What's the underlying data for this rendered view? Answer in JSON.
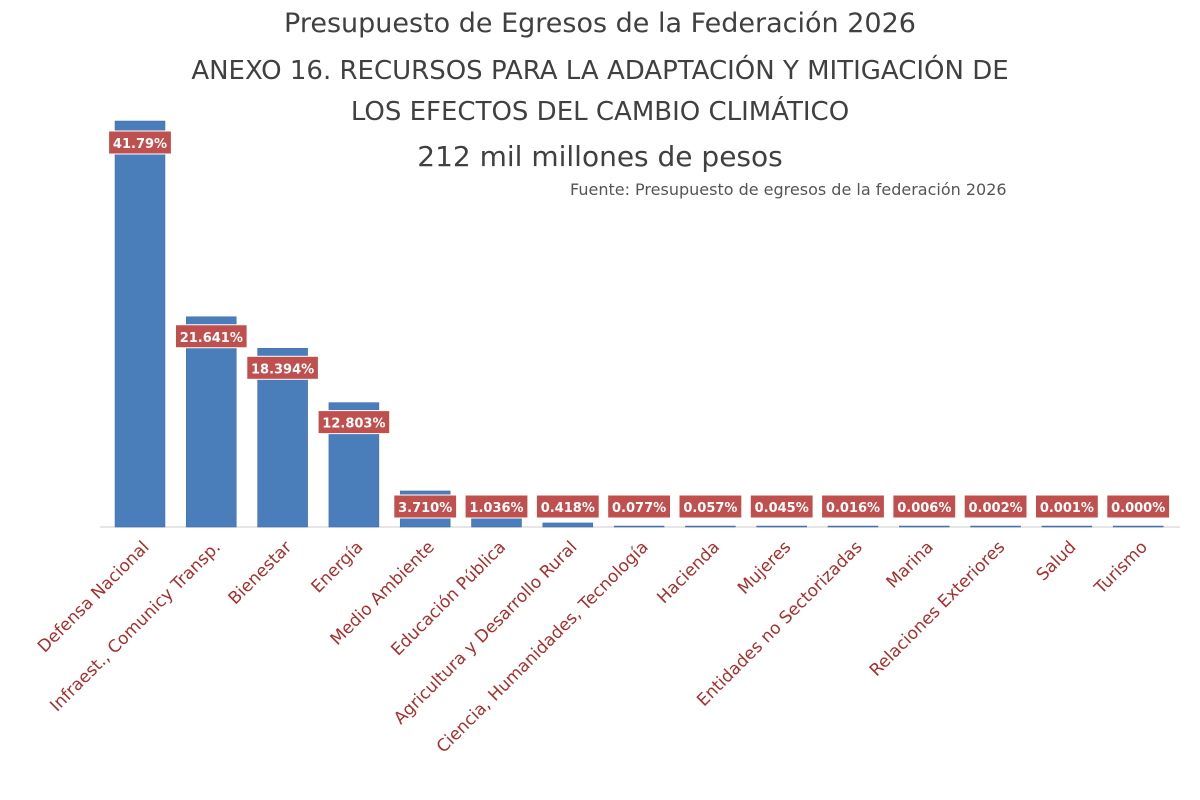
{
  "title_lines": [
    "Presupuesto de Egresos de la Federación  2026",
    "ANEXO 16. RECURSOS PARA LA ADAPTACIÓN Y MITIGACIÓN DE",
    "LOS EFECTOS DEL CAMBIO CLIMÁTICO",
    "212 mil millones de pesos"
  ],
  "source": "Fuente: Presupuesto de egresos de la federación 2026",
  "colors": {
    "bar": "#4a7ebb",
    "label_bg": "#c0504d",
    "label_text": "#ffffff",
    "category_text": "#a5302e",
    "title": "#404040"
  },
  "chart_data": {
    "type": "bar",
    "categories": [
      "Defensa Nacional",
      "Infraest., Comunicy Transp.",
      "Bienestar",
      "Energía",
      "Medio Ambiente",
      "Educación Pública",
      "Agricultura y Desarrollo Rural",
      "Ciencia, Humanidades, Tecnología",
      "Hacienda",
      "Mujeres",
      "Entidades no Sectorizadas",
      "Marina",
      "Relaciones Exteriores",
      "Salud",
      "Turismo"
    ],
    "values": [
      41.79,
      21.641,
      18.394,
      12.803,
      3.71,
      1.036,
      0.418,
      0.077,
      0.057,
      0.045,
      0.016,
      0.006,
      0.002,
      0.001,
      0.0
    ],
    "data_labels": [
      "41.79%",
      "21.641%",
      "18.394%",
      "12.803%",
      "3.710%",
      "1.036%",
      "0.418%",
      "0.077%",
      "0.057%",
      "0.045%",
      "0.016%",
      "0.006%",
      "0.002%",
      "0.001%",
      "0.000%"
    ],
    "title": "Presupuesto de Egresos de la Federación  2026",
    "xlabel": "",
    "ylabel": "",
    "ylim": [
      0,
      45
    ],
    "grid": false,
    "legend": "none"
  }
}
